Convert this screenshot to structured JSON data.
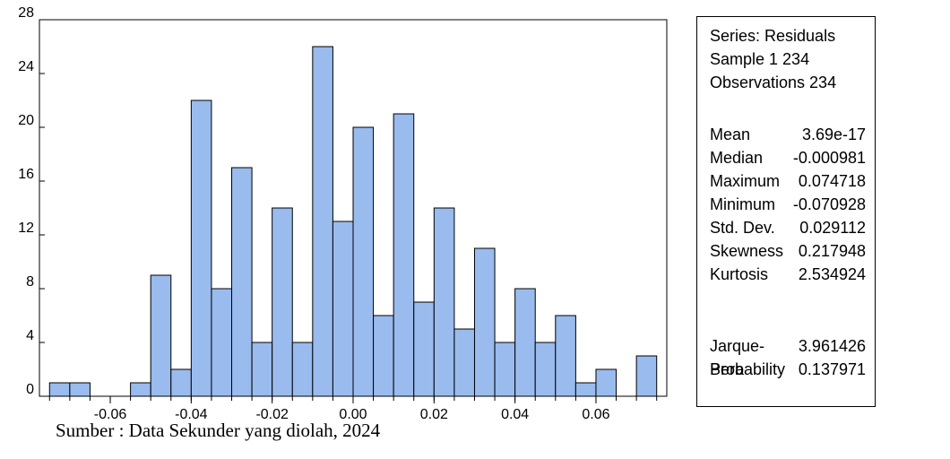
{
  "chart_data": {
    "type": "bar",
    "bin_width": 0.005,
    "bins": [
      {
        "x": -0.0725,
        "value": 1
      },
      {
        "x": -0.0675,
        "value": 1
      },
      {
        "x": -0.0625,
        "value": 0
      },
      {
        "x": -0.0575,
        "value": 0
      },
      {
        "x": -0.0525,
        "value": 1
      },
      {
        "x": -0.0475,
        "value": 9
      },
      {
        "x": -0.0425,
        "value": 2
      },
      {
        "x": -0.0375,
        "value": 22
      },
      {
        "x": -0.0325,
        "value": 8
      },
      {
        "x": -0.0275,
        "value": 17
      },
      {
        "x": -0.0225,
        "value": 4
      },
      {
        "x": -0.0175,
        "value": 14
      },
      {
        "x": -0.0125,
        "value": 4
      },
      {
        "x": -0.0075,
        "value": 26
      },
      {
        "x": -0.0025,
        "value": 13
      },
      {
        "x": 0.0025,
        "value": 20
      },
      {
        "x": 0.0075,
        "value": 6
      },
      {
        "x": 0.0125,
        "value": 21
      },
      {
        "x": 0.0175,
        "value": 7
      },
      {
        "x": 0.0225,
        "value": 14
      },
      {
        "x": 0.0275,
        "value": 5
      },
      {
        "x": 0.0325,
        "value": 11
      },
      {
        "x": 0.0375,
        "value": 4
      },
      {
        "x": 0.0425,
        "value": 8
      },
      {
        "x": 0.0475,
        "value": 4
      },
      {
        "x": 0.0525,
        "value": 6
      },
      {
        "x": 0.0575,
        "value": 1
      },
      {
        "x": 0.0625,
        "value": 2
      },
      {
        "x": 0.0675,
        "value": 0
      },
      {
        "x": 0.0725,
        "value": 3
      }
    ],
    "xlim": [
      -0.0775,
      0.0775
    ],
    "ylim": [
      0,
      28
    ],
    "x_ticks": [
      -0.06,
      -0.04,
      -0.02,
      0.0,
      0.02,
      0.04,
      0.06
    ],
    "x_tick_labels": [
      "-0.06",
      "-0.04",
      "-0.02",
      "0.00",
      "0.02",
      "0.04",
      "0.06"
    ],
    "y_ticks": [
      0,
      4,
      8,
      12,
      16,
      20,
      24,
      28
    ],
    "y_tick_labels": [
      "0",
      "4",
      "8",
      "12",
      "16",
      "20",
      "24",
      "28"
    ],
    "xlabel": "",
    "ylabel": "",
    "grid": false,
    "bar_color": "#99bbee",
    "edge_color": "#000000"
  },
  "stats": {
    "series_line": "Series: Residuals",
    "sample_line": "Sample 1 234",
    "observations_line": "Observations 234",
    "rows": [
      {
        "label": "Mean",
        "value": "3.69e-17"
      },
      {
        "label": "Median",
        "value": "-0.000981"
      },
      {
        "label": "Maximum",
        "value": "0.074718"
      },
      {
        "label": "Minimum",
        "value": "-0.070928"
      },
      {
        "label": "Std. Dev.",
        "value": "0.029112"
      },
      {
        "label": "Skewness",
        "value": "0.217948"
      },
      {
        "label": "Kurtosis",
        "value": "2.534924"
      }
    ],
    "test_rows": [
      {
        "label": "Jarque-Bera",
        "value": "3.961426"
      },
      {
        "label": "Probability",
        "value": "0.137971"
      }
    ]
  },
  "source_note": "Sumber : Data Sekunder yang diolah, 2024"
}
